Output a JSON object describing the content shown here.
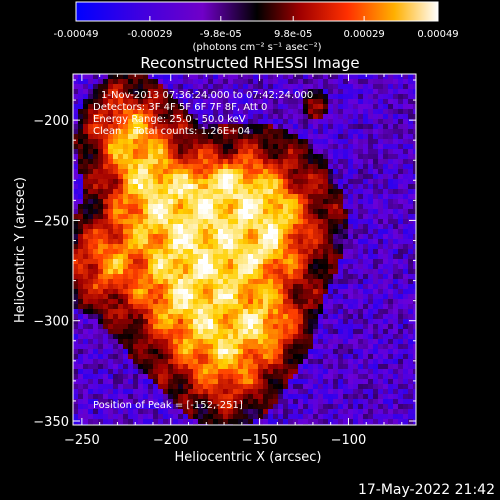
{
  "colorbar": {
    "tick_labels": [
      "-0.00049",
      "-0.00029",
      "-9.8e-05",
      "9.8e-05",
      "0.00029",
      "0.00049"
    ],
    "tick_values": [
      -0.00049,
      -0.00029,
      -9.8e-05,
      9.8e-05,
      0.00029,
      0.00049
    ],
    "range": [
      -0.00049,
      0.00049
    ],
    "unit_label": "(photons cm⁻² s⁻¹ asec⁻²)"
  },
  "chart_data": {
    "type": "heatmap",
    "title": "Reconstructed RHESSI Image",
    "xlabel": "Heliocentric X (arcsec)",
    "ylabel": "Heliocentric Y (arcsec)",
    "xlim": [
      -255,
      -62
    ],
    "ylim": [
      -352,
      -177
    ],
    "x_ticks": [
      -250,
      -200,
      -150,
      -100
    ],
    "y_ticks": [
      -200,
      -250,
      -300,
      -350
    ],
    "annotations": [
      "1-Nov-2013 07:36:24.000 to 07:42:24.000",
      "Detectors: 3F 4F 5F 6F 7F 8F, Att 0",
      "Energy Range: 25.0 - 50.0 keV",
      "Clean    Total counts: 1.26E+04"
    ],
    "peak_label": "Position of Peak = [-152,-251]",
    "peak": [
      -152,
      -251
    ],
    "colormap": [
      "#0000ff",
      "#6a00d8",
      "#000000",
      "#a00000",
      "#ff4000",
      "#ffd000",
      "#ffffff"
    ]
  },
  "footer": {
    "timestamp": "17-May-2022 21:42"
  }
}
